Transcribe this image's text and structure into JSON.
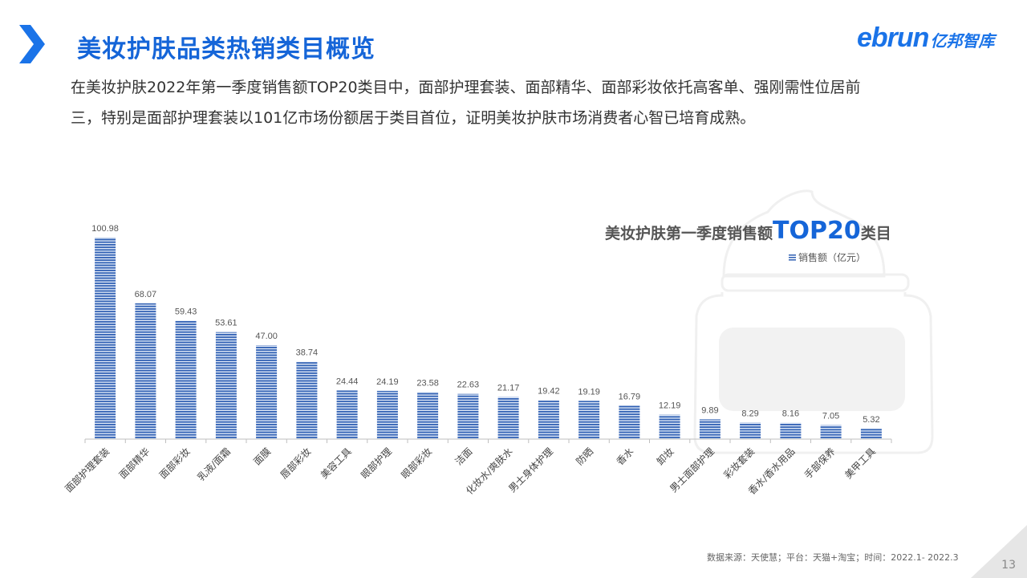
{
  "header": {
    "title": "美妆护肤品类热销类目概览",
    "logo_latin": "ebrun",
    "logo_cn": "亿邦智库"
  },
  "summary": {
    "line1": "在美妆护肤2022年第一季度销售额TOP20类目中，面部护理套装、面部精华、面部彩妆依托高客单、强刚需性位居前",
    "line2": "三，特别是面部护理套装以101亿市场份额居于类目首位，证明美妆护肤市场消费者心智已培育成熟。"
  },
  "chart_data": {
    "type": "bar",
    "title_prefix": "美妆护肤第一季度销售额",
    "title_highlight": "TOP20",
    "title_suffix": "类目",
    "legend": "销售额（亿元）",
    "legend_placement": "top-right",
    "grid": false,
    "ylim": [
      0,
      100.98
    ],
    "categories": [
      "面部护理套装",
      "面部精华",
      "面部彩妆",
      "乳液/面霜",
      "面膜",
      "唇部彩妆",
      "美容工具",
      "眼部护理",
      "眼部彩妆",
      "洁面",
      "化妆水/爽肤水",
      "男士身体护理",
      "防晒",
      "香水",
      "卸妆",
      "男士面部护理",
      "彩妆套装",
      "香水/香水用品",
      "手部保养",
      "美甲工具"
    ],
    "series": [
      {
        "name": "销售额（亿元）",
        "values": [
          100.98,
          68.07,
          59.43,
          53.61,
          47.0,
          38.74,
          24.44,
          24.19,
          23.58,
          22.63,
          21.17,
          19.42,
          19.19,
          16.79,
          12.19,
          9.89,
          8.29,
          8.16,
          7.05,
          5.32
        ],
        "labels": [
          "100.98",
          "68.07",
          "59.43",
          "53.61",
          "47.00",
          "38.74",
          "24.44",
          "24.19",
          "23.58",
          "22.63",
          "21.17",
          "19.42",
          "19.19",
          "16.79",
          "12.19",
          "9.89",
          "8.29",
          "8.16",
          "7.05",
          "5.32"
        ]
      }
    ]
  },
  "colors": {
    "accent": "#1565d8",
    "bar_stripe": "#2f5fb3"
  },
  "footer": {
    "source": "数据来源：天使慧；平台：天猫+淘宝；时间：2022.1- 2022.3",
    "page_number": "13"
  }
}
